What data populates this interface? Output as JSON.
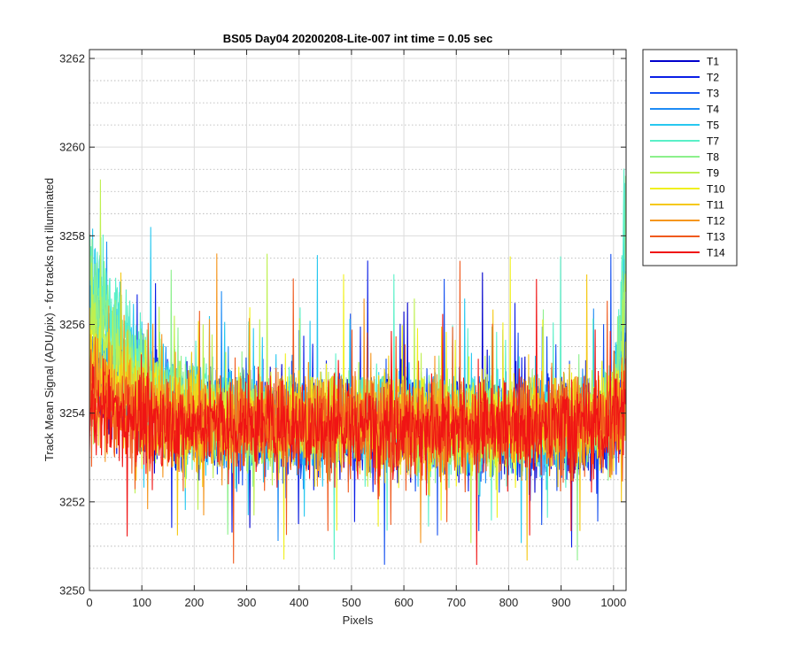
{
  "chart_data": {
    "type": "line",
    "title": "BS05 Day04 20200208-Lite-007 int time = 0.05 sec",
    "xlabel": "Pixels",
    "ylabel": "Track Mean Signal (ADU/pix) - for tracks not illuminated",
    "xlim": [
      0,
      1024
    ],
    "ylim": [
      3250,
      3262.2
    ],
    "x_ticks": [
      "0",
      "100",
      "200",
      "300",
      "400",
      "500",
      "600",
      "700",
      "800",
      "900",
      "1000"
    ],
    "y_ticks": [
      "3250",
      "3252",
      "3254",
      "3256",
      "3258",
      "3260",
      "3262"
    ],
    "grid": true,
    "minor_grid": true,
    "legend_position": "outside-top-right",
    "series": [
      {
        "name": "T1",
        "color": "#0000cc",
        "baseline": 3253.7,
        "left_edge": 3255.0,
        "right_edge": 3254.8
      },
      {
        "name": "T2",
        "color": "#0a1ee6",
        "baseline": 3253.7,
        "left_edge": 3255.2,
        "right_edge": 3255.0
      },
      {
        "name": "T3",
        "color": "#1450f0",
        "baseline": 3253.7,
        "left_edge": 3255.6,
        "right_edge": 3255.4
      },
      {
        "name": "T4",
        "color": "#1e8cf5",
        "baseline": 3253.8,
        "left_edge": 3256.2,
        "right_edge": 3257.0
      },
      {
        "name": "T5",
        "color": "#28c8f0",
        "baseline": 3253.8,
        "left_edge": 3257.0,
        "right_edge": 3258.6
      },
      {
        "name": "T7",
        "color": "#5af0c8",
        "baseline": 3253.8,
        "left_edge": 3257.6,
        "right_edge": 3259.0
      },
      {
        "name": "T8",
        "color": "#8cf08c",
        "baseline": 3253.8,
        "left_edge": 3257.0,
        "right_edge": 3257.6
      },
      {
        "name": "T9",
        "color": "#bef050",
        "baseline": 3253.8,
        "left_edge": 3256.0,
        "right_edge": 3256.2
      },
      {
        "name": "T10",
        "color": "#f0f01e",
        "baseline": 3253.8,
        "left_edge": 3255.2,
        "right_edge": 3255.2
      },
      {
        "name": "T11",
        "color": "#f5c814",
        "baseline": 3253.8,
        "left_edge": 3254.8,
        "right_edge": 3254.8
      },
      {
        "name": "T12",
        "color": "#f5961e",
        "baseline": 3253.8,
        "left_edge": 3254.6,
        "right_edge": 3254.6
      },
      {
        "name": "T13",
        "color": "#f05a1e",
        "baseline": 3253.7,
        "left_edge": 3254.4,
        "right_edge": 3254.4
      },
      {
        "name": "T14",
        "color": "#f01414",
        "baseline": 3253.7,
        "left_edge": 3254.2,
        "right_edge": 3254.2
      }
    ]
  }
}
